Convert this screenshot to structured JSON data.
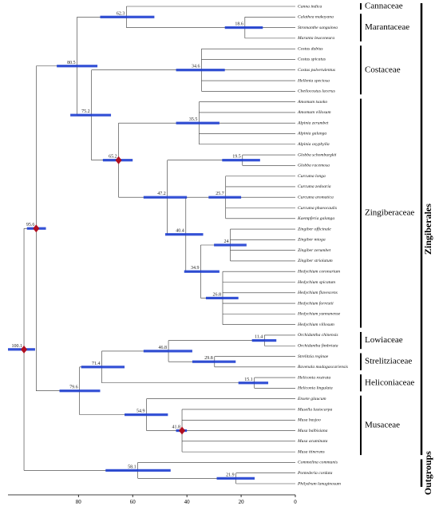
{
  "tree": {
    "age": 100.1,
    "hpd": [
      106,
      96
    ],
    "calibrated": true,
    "children": [
      {
        "age": 95.6,
        "hpd": [
          99,
          92
        ],
        "calibrated": true,
        "group": "Zingiberales",
        "children": [
          {
            "age": 80.5,
            "hpd": [
              88,
              73
            ],
            "children": [
              {
                "age": 62.3,
                "hpd": [
                  72,
                  52
                ],
                "children": [
                  {
                    "name": "Canna indica",
                    "family": "Cannaceae"
                  },
                  {
                    "age": 18.6,
                    "hpd": [
                      26,
                      12
                    ],
                    "family": "Marantaceae",
                    "children": [
                      {
                        "name": "Calathea makoyana"
                      },
                      {
                        "name": "Stromanthe sanguinea"
                      },
                      {
                        "name": "Maranta leuconeura"
                      }
                    ]
                  }
                ]
              },
              {
                "age": 75.2,
                "hpd": [
                  83,
                  68
                ],
                "children": [
                  {
                    "age": 34.6,
                    "hpd": [
                      44,
                      26
                    ],
                    "family": "Costaceae",
                    "children": [
                      {
                        "name": "Costus dubius"
                      },
                      {
                        "name": "Costus spicatus"
                      },
                      {
                        "name": "Costus pulverulentus"
                      },
                      {
                        "name": "Hellenia speciosa"
                      },
                      {
                        "name": "Cheilocostus lacerus"
                      }
                    ]
                  },
                  {
                    "age": 65.2,
                    "hpd": [
                      71,
                      60
                    ],
                    "calibrated": true,
                    "family": "Zingiberaceae",
                    "children": [
                      {
                        "age": 35.5,
                        "hpd": [
                          44,
                          28
                        ],
                        "children": [
                          {
                            "name": "Amomum tsaoko"
                          },
                          {
                            "name": "Amomum villosum"
                          },
                          {
                            "name": "Alpinia zerumbet"
                          },
                          {
                            "name": "Alpinia galanga"
                          },
                          {
                            "name": "Alpinia oxyphylla"
                          }
                        ]
                      },
                      {
                        "age": 47.2,
                        "hpd": [
                          56,
                          40
                        ],
                        "children": [
                          {
                            "age": 19.5,
                            "hpd": [
                              27,
                              13
                            ],
                            "children": [
                              {
                                "name": "Globba schomburgkii"
                              },
                              {
                                "name": "Globba racemosa"
                              }
                            ]
                          },
                          {
                            "age": 40.4,
                            "hpd": [
                              48,
                              34
                            ],
                            "children": [
                              {
                                "age": 25.7,
                                "hpd": [
                                  32,
                                  20
                                ],
                                "children": [
                                  {
                                    "name": "Curcuma longa"
                                  },
                                  {
                                    "name": "Curcuma zedoaria"
                                  },
                                  {
                                    "name": "Curcuma aromatica"
                                  },
                                  {
                                    "name": "Curcuma phaeocaulis"
                                  },
                                  {
                                    "name": "Kaempferia galanga"
                                  }
                                ]
                              },
                              {
                                "age": 34.9,
                                "hpd": [
                                  41,
                                  28
                                ],
                                "children": [
                                  {
                                    "age": 24.0,
                                    "hpd": [
                                      30,
                                      18
                                    ],
                                    "children": [
                                      {
                                        "name": "Zingiber officinale"
                                      },
                                      {
                                        "name": "Zingiber mioga"
                                      },
                                      {
                                        "name": "Zingiber zerumbet"
                                      },
                                      {
                                        "name": "Zingiber striolatum"
                                      }
                                    ]
                                  },
                                  {
                                    "age": 26.8,
                                    "hpd": [
                                      33,
                                      21
                                    ],
                                    "children": [
                                      {
                                        "name": "Hedychium coronarium"
                                      },
                                      {
                                        "name": "Hedychium spicatum"
                                      },
                                      {
                                        "name": "Hedychium flavescens"
                                      },
                                      {
                                        "name": "Hedychium forrestii"
                                      },
                                      {
                                        "name": "Hedychium yunnanense"
                                      },
                                      {
                                        "name": "Hedychium villosum"
                                      }
                                    ]
                                  }
                                ]
                              }
                            ]
                          }
                        ]
                      }
                    ]
                  }
                ]
              }
            ]
          },
          {
            "age": 79.6,
            "hpd": [
              87,
              72
            ],
            "children": [
              {
                "age": 71.4,
                "hpd": [
                  79,
                  63
                ],
                "children": [
                  {
                    "age": 46.8,
                    "hpd": [
                      56,
                      38
                    ],
                    "children": [
                      {
                        "age": 11.4,
                        "hpd": [
                          16,
                          7
                        ],
                        "family": "Lowiaceae",
                        "children": [
                          {
                            "name": "Orchidantha chinensis"
                          },
                          {
                            "name": "Orchidantha fimbriata"
                          }
                        ]
                      },
                      {
                        "age": 29.8,
                        "hpd": [
                          38,
                          22
                        ],
                        "family": "Strelitziaceae",
                        "children": [
                          {
                            "name": "Strelitzia reginae"
                          },
                          {
                            "name": "Ravenala madagascariensis"
                          }
                        ]
                      }
                    ]
                  },
                  {
                    "age": 15.1,
                    "hpd": [
                      21,
                      10
                    ],
                    "family": "Heliconiaceae",
                    "children": [
                      {
                        "name": "Heliconia rostrata"
                      },
                      {
                        "name": "Heliconia lingulata"
                      }
                    ]
                  }
                ]
              },
              {
                "age": 54.9,
                "hpd": [
                  63,
                  47
                ],
                "family": "Musaceae",
                "children": [
                  {
                    "name": "Ensete glaucum"
                  },
                  {
                    "age": 41.8,
                    "hpd": [
                      44,
                      40
                    ],
                    "calibrated": true,
                    "children": [
                      {
                        "name": "Musella lasiocarpa"
                      },
                      {
                        "name": "Musa basjoo"
                      },
                      {
                        "name": "Musa balbisiana"
                      },
                      {
                        "name": "Musa acuminata"
                      },
                      {
                        "name": "Musa itinerans"
                      }
                    ]
                  }
                ]
              }
            ]
          }
        ]
      },
      {
        "age": 58.1,
        "hpd": [
          70,
          46
        ],
        "group": "Outgroups",
        "children": [
          {
            "name": "Commelina communis"
          },
          {
            "age": 21.9,
            "hpd": [
              29,
              15
            ],
            "children": [
              {
                "name": "Pontederia cordata"
              },
              {
                "name": "Philydrum lanuginosum"
              }
            ]
          }
        ]
      }
    ]
  },
  "axis": {
    "xlim": [
      106,
      0
    ],
    "xticks": [
      80,
      60,
      40,
      20,
      0
    ]
  },
  "colors": {
    "hpd": "#1f3fd1",
    "branch": "#333333",
    "calibration": "#b01020"
  }
}
